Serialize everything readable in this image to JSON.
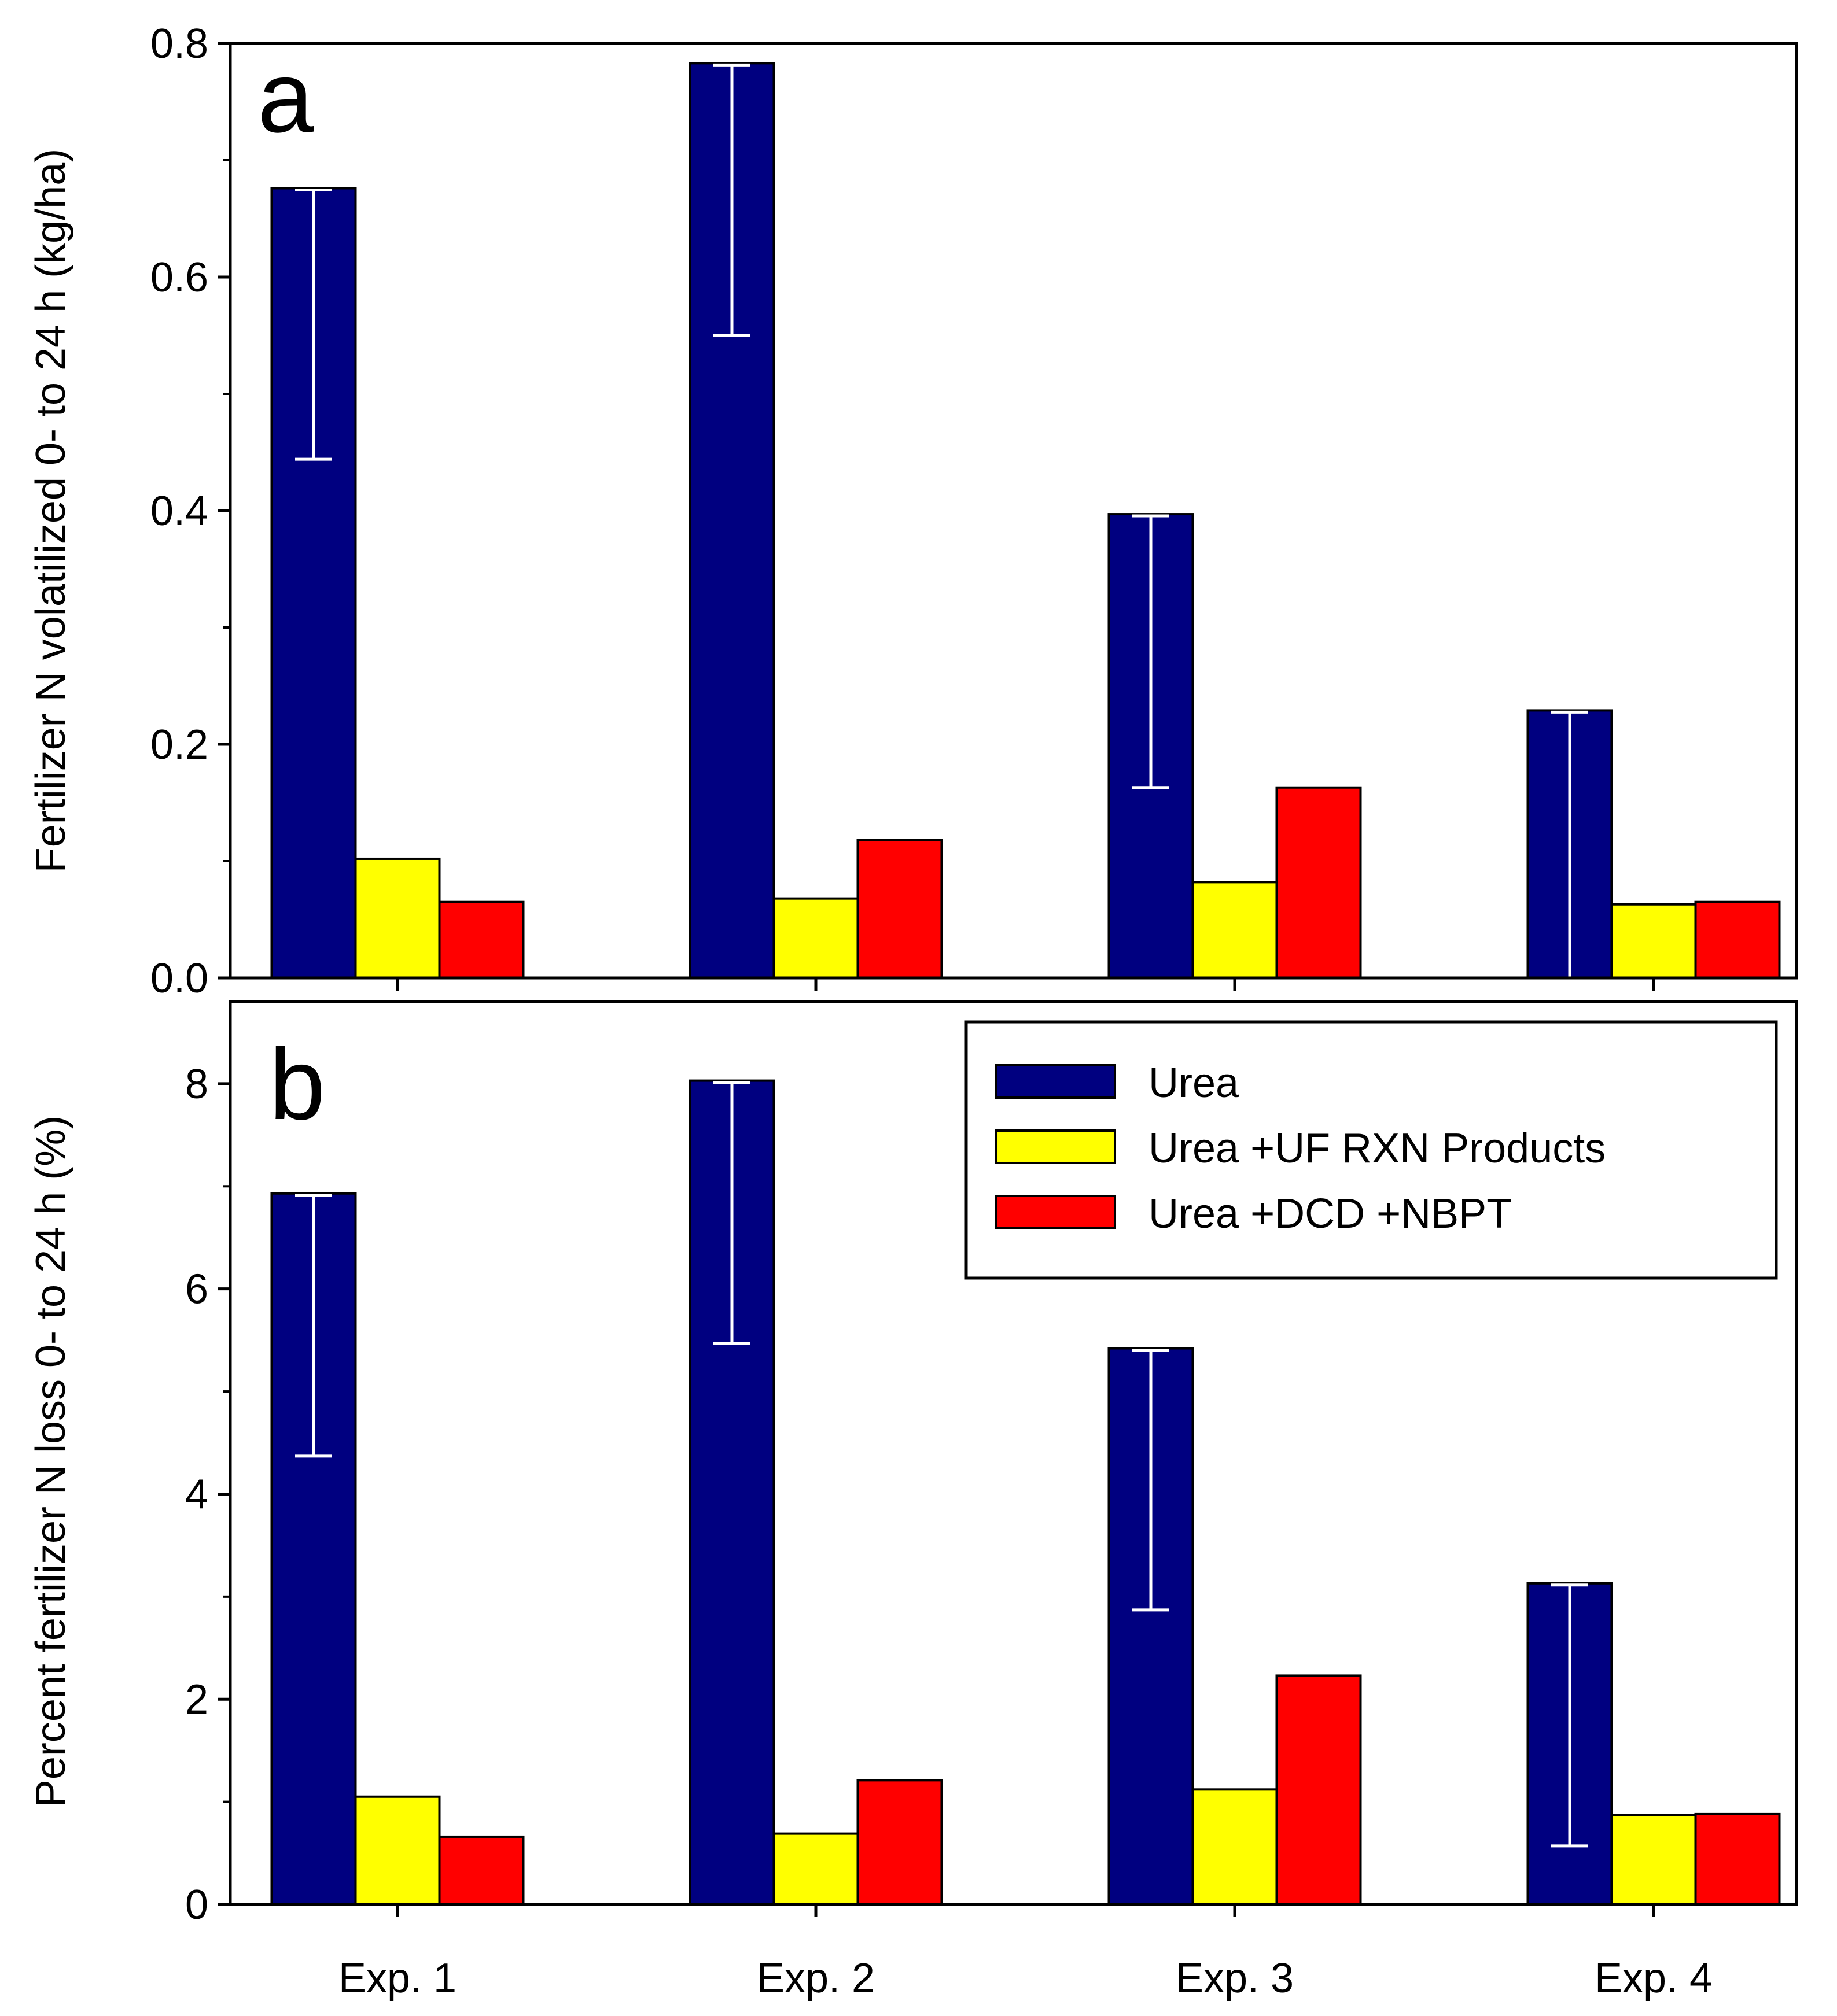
{
  "colors": {
    "urea": "#000080",
    "urea_uf": "#ffff00",
    "urea_dcd": "#ff0000",
    "errorbar": "#ffffff",
    "axis": "#000000"
  },
  "legend": {
    "placement": "top-right of panel b",
    "items": [
      {
        "label": "Urea",
        "color": "#000080"
      },
      {
        "label": "Urea +UF RXN Products",
        "color": "#ffff00"
      },
      {
        "label": "Urea +DCD +NBPT",
        "color": "#ff0000"
      }
    ]
  },
  "chart_data": [
    {
      "type": "bar",
      "panel": "a",
      "title": "",
      "xlabel": "",
      "ylabel": "Fertilizer N volatilized 0- to 24 h (kg/ha)",
      "ylim": [
        0,
        0.8
      ],
      "yticks": [
        "0.0",
        "0.2",
        "0.4",
        "0.6",
        "0.8"
      ],
      "categories": [
        "Exp. 1",
        "Exp. 2",
        "Exp. 3",
        "Exp. 4"
      ],
      "series": [
        {
          "name": "Urea",
          "values": [
            0.676,
            0.783,
            0.397,
            0.229
          ],
          "error_low": [
            0.444,
            0.55,
            0.163,
            0.0
          ]
        },
        {
          "name": "Urea +UF RXN Products",
          "values": [
            0.102,
            0.068,
            0.082,
            0.063
          ]
        },
        {
          "name": "Urea +DCD +NBPT",
          "values": [
            0.065,
            0.118,
            0.163,
            0.065
          ]
        }
      ]
    },
    {
      "type": "bar",
      "panel": "b",
      "title": "",
      "xlabel": "",
      "ylabel": "Percent fertilizer N loss 0- to 24 h (%)",
      "ylim": [
        0,
        8.8
      ],
      "yticks": [
        "0",
        "2",
        "4",
        "6",
        "8"
      ],
      "categories": [
        "Exp. 1",
        "Exp. 2",
        "Exp. 3",
        "Exp. 4"
      ],
      "series": [
        {
          "name": "Urea",
          "values": [
            6.93,
            8.03,
            5.42,
            3.13
          ],
          "error_low": [
            4.37,
            5.47,
            2.87,
            0.57
          ]
        },
        {
          "name": "Urea +UF RXN Products",
          "values": [
            1.05,
            0.69,
            1.12,
            0.87
          ]
        },
        {
          "name": "Urea +DCD +NBPT",
          "values": [
            0.66,
            1.21,
            2.23,
            0.88
          ]
        }
      ]
    }
  ]
}
